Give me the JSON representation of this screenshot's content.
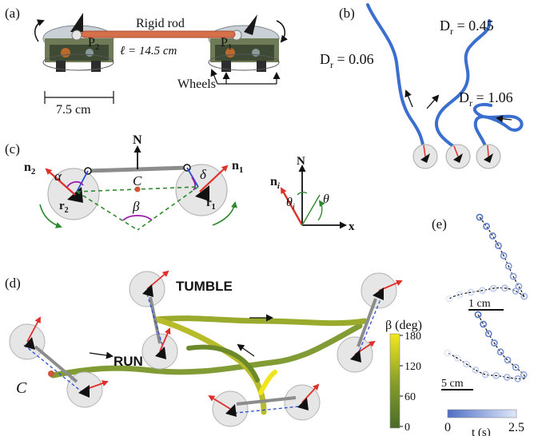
{
  "panels": {
    "a": {
      "label": "(a)",
      "rod_label": "Rigid rod",
      "p2": "P",
      "p2_sub": "2",
      "p1": "P",
      "p1_sub": "1",
      "length": "ℓ = 14.5 cm",
      "wheels": "Wheels",
      "width": "7.5 cm"
    },
    "b": {
      "label": "(b)",
      "traces": [
        {
          "prefix": "D",
          "sub": "r",
          "value": " = 0.06"
        },
        {
          "prefix": "D",
          "sub": "r",
          "value": " = 0.45"
        },
        {
          "prefix": "D",
          "sub": "r",
          "value": " = 1.06"
        }
      ]
    },
    "c": {
      "label": "(c)",
      "N": "N",
      "n2": "n",
      "n2_sub": "2",
      "n1": "n",
      "n1_sub": "1",
      "alpha": "α",
      "delta": "δ",
      "C": "C",
      "beta": "β",
      "r2": "r",
      "r2_sub": "2",
      "r1": "r",
      "r1_sub": "1",
      "frame_N": "N",
      "ni": "n",
      "ni_sub": "i",
      "theta_i": "θ",
      "theta_i_sub": "i",
      "theta": "θ",
      "x": "x"
    },
    "d": {
      "label": "(d)",
      "tumble": "TUMBLE",
      "run": "RUN",
      "C": "C",
      "colorbar": {
        "title": "β (deg)",
        "ticks": [
          "180",
          "120",
          "60",
          "0"
        ],
        "color_low": "#4a6b2a",
        "color_high": "#f2e81e"
      }
    },
    "e": {
      "label": "(e)",
      "scale1": "1 cm",
      "scale2": "5 cm",
      "colorbar": {
        "min": "0",
        "max": "2.5",
        "title": "t (s)",
        "color_low": "#4f6fc4",
        "color_high": "#dfe8fa"
      }
    }
  },
  "colors": {
    "trace_blue": "#3a6fd0",
    "arrow_red": "#e0302a",
    "rod_gray": "#8c8c8c",
    "dash_green": "#2e8a2e",
    "dash_blue": "#2a4fd6",
    "arc_purple": "#9a1aa8"
  }
}
